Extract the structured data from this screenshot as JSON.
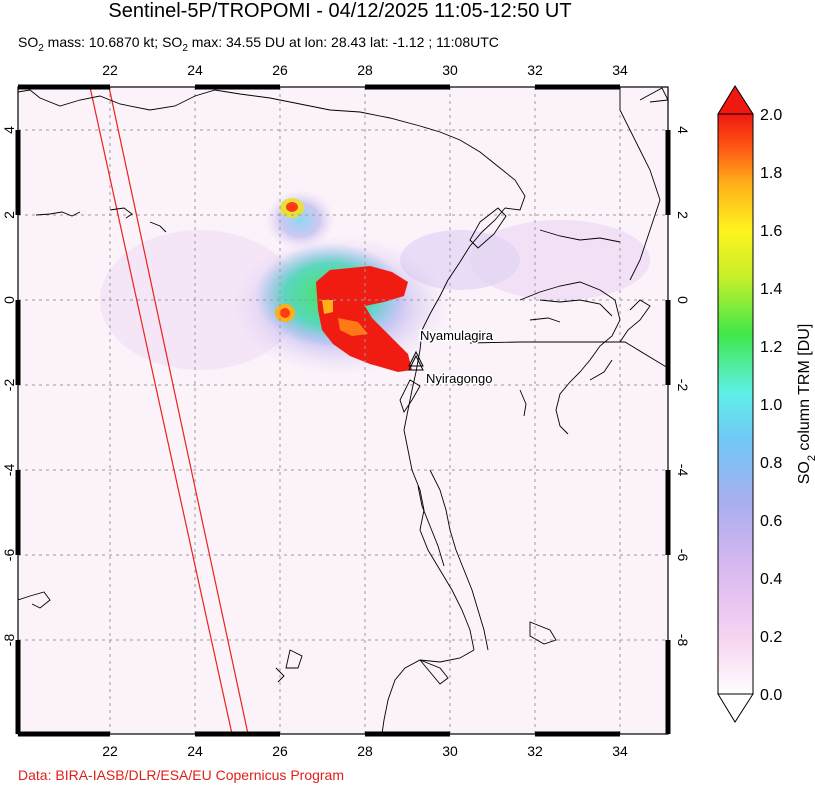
{
  "title": "Sentinel-5P/TROPOMI - 04/12/2025 11:05-12:50 UT",
  "subtitle": {
    "p1": "SO",
    "sub1": "2",
    "p2": " mass: 10.6870 kt; SO",
    "sub2": "2",
    "p3": " max: 34.55 DU at lon: 28.43 lat: -1.12 ; 11:08UTC"
  },
  "credit": "Data: BIRA-IASB/DLR/ESA/EU Copernicus Program",
  "map": {
    "lon_ticks": [
      "22",
      "24",
      "26",
      "28",
      "30",
      "32",
      "34"
    ],
    "lat_ticks_left": [
      "4",
      "2",
      "0",
      "-2",
      "-4",
      "-6",
      "-8"
    ],
    "lat_ticks_right": [
      "4",
      "2",
      "0",
      "-2",
      "-4",
      "-6",
      "-8"
    ],
    "lon_range": [
      20.2,
      35.2
    ],
    "lat_range": [
      -10.0,
      5.0
    ],
    "volcanoes": [
      {
        "name": "Nyamulagira",
        "lon": 29.2,
        "lat": -1.41
      },
      {
        "name": "Nyiragongo",
        "lon": 29.25,
        "lat": -1.52
      }
    ]
  },
  "colorbar": {
    "label_pre": "SO",
    "label_sub": "2",
    "label_post": " column TRM [DU]",
    "ticks": [
      "2.0",
      "1.8",
      "1.6",
      "1.4",
      "1.2",
      "1.0",
      "0.8",
      "0.6",
      "0.4",
      "0.2",
      "0.0"
    ],
    "range": [
      0.0,
      2.0
    ],
    "colors": [
      "#ffffff",
      "#f7d6f2",
      "#d9b8f0",
      "#a9aef0",
      "#6fc8f5",
      "#5ff0e6",
      "#3fe84a",
      "#c8f02a",
      "#fff21e",
      "#ffb01a",
      "#ff5a14",
      "#f01810"
    ]
  }
}
